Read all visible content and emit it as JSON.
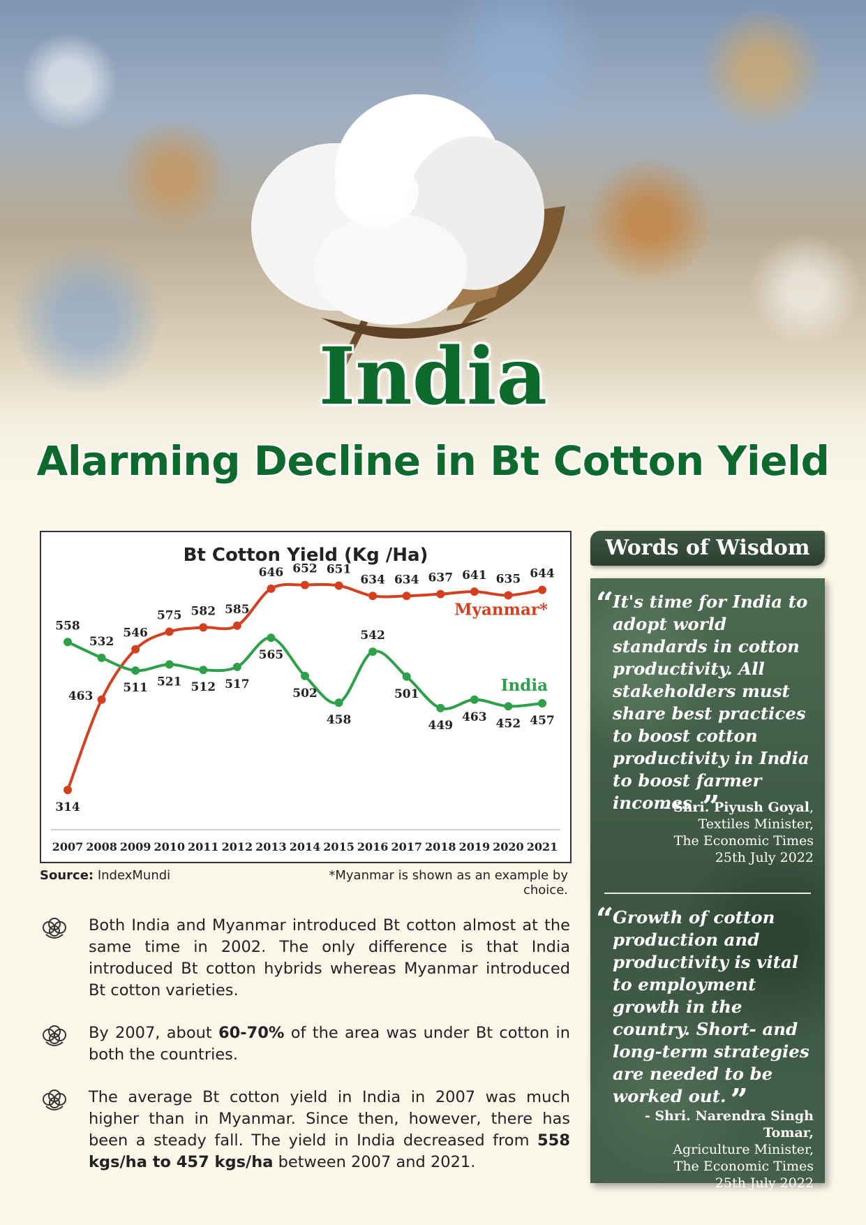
{
  "colors": {
    "brand_green": "#0d6a2c",
    "myanmar_red": "#d2401f",
    "india_green": "#2ea04a",
    "panel_green": "#3c5641"
  },
  "header": {
    "title": "India",
    "subtitle": "Alarming Decline in Bt Cotton Yield"
  },
  "chart_data": {
    "type": "line",
    "title": "Bt Cotton Yield (Kg /Ha)",
    "categories": [
      "2007",
      "2008",
      "2009",
      "2010",
      "2011",
      "2012",
      "2013",
      "2014",
      "2015",
      "2016",
      "2017",
      "2018",
      "2019",
      "2020",
      "2021"
    ],
    "series": [
      {
        "name": "Myanmar*",
        "color": "#d2401f",
        "values": [
          314,
          463,
          546,
          575,
          582,
          585,
          646,
          652,
          651,
          634,
          634,
          637,
          641,
          635,
          644
        ]
      },
      {
        "name": "India",
        "color": "#2ea04a",
        "values": [
          558,
          532,
          511,
          521,
          512,
          517,
          565,
          502,
          458,
          542,
          501,
          449,
          463,
          452,
          457
        ]
      }
    ],
    "ylim": [
      290,
      670
    ],
    "xlabel": "",
    "ylabel": "",
    "grid": false,
    "legend": "labels at right end of lines"
  },
  "chart_notes": {
    "source_label": "Source:",
    "source_value": "IndexMundi",
    "footnote": "*Myanmar is shown as an example by choice."
  },
  "bullets": [
    {
      "icon": "cotton-boll-icon",
      "parts": [
        {
          "t": "Both India and Myanmar introduced Bt cotton almost at the same time in 2002. The only difference is that India introduced Bt cotton hybrids whereas Myanmar introduced Bt cotton varieties.",
          "b": false
        }
      ]
    },
    {
      "icon": "cotton-boll-icon",
      "parts": [
        {
          "t": "By 2007, about ",
          "b": false
        },
        {
          "t": "60-70%",
          "b": true
        },
        {
          "t": " of the area was under Bt cotton in both the countries.",
          "b": false
        }
      ]
    },
    {
      "icon": "cotton-boll-icon",
      "parts": [
        {
          "t": "The average Bt cotton yield in India in 2007 was much higher than in Myanmar. Since then, however, there has been a steady fall. The yield in India decreased from ",
          "b": false
        },
        {
          "t": "558 kgs/ha to 457 kgs/ha",
          "b": true
        },
        {
          "t": " between 2007 and 2021.",
          "b": false
        }
      ]
    }
  ],
  "wisdom": {
    "heading": "Words of Wisdom",
    "quotes": [
      {
        "text": "It's time for India to adopt world standards in cotton productivity. All stakeholders must share best practices to boost cotton productivity in India to boost farmer incomes.",
        "name": "- Shri. Piyush Goyal",
        "role": "Textiles Minister,",
        "source": "The Economic Times",
        "date": "25th July 2022"
      },
      {
        "text": "Growth of cotton production and productivity is vital to employment growth in the country. Short- and long-term strategies are needed to be worked out.",
        "name": "- Shri. Narendra Singh Tomar,",
        "role": "Agriculture Minister,",
        "source": "The Economic Times",
        "date": "25th July 2022"
      }
    ],
    "open_mark": "“",
    "close_mark": "”"
  }
}
